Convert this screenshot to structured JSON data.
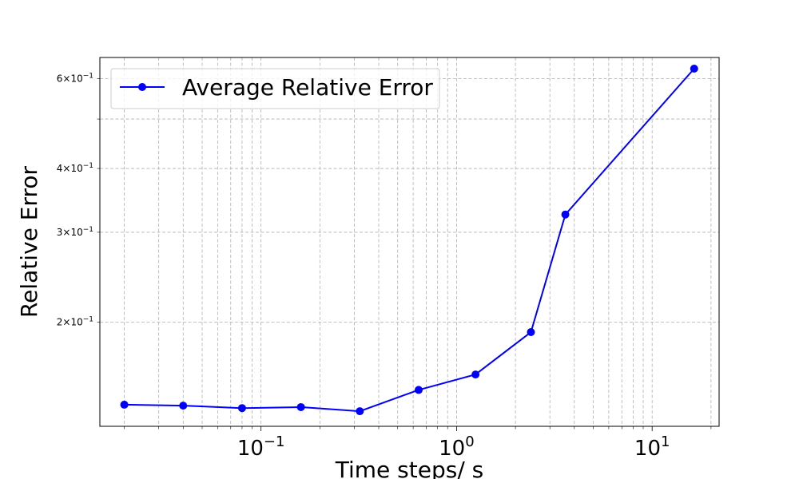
{
  "chart_data": {
    "type": "line",
    "xscale": "log",
    "yscale": "log",
    "xlabel": "Time steps/ s",
    "ylabel": "Relative Error",
    "xlim": [
      0.015,
      22
    ],
    "ylim": [
      0.125,
      0.66
    ],
    "grid": "both (major and minor), dashed",
    "legend_position": "upper-left",
    "series": [
      {
        "name": "Average Relative Error",
        "color": "#0000ff",
        "marker": "circle",
        "x": [
          0.02,
          0.04,
          0.08,
          0.16,
          0.32,
          0.64,
          1.25,
          2.4,
          3.6,
          16.4
        ],
        "y": [
          0.1378,
          0.1372,
          0.1357,
          0.1363,
          0.1338,
          0.1473,
          0.1579,
          0.1912,
          0.325,
          0.6275
        ]
      }
    ],
    "x_ticks": [
      {
        "value": 0.1,
        "base": "10",
        "exp": "−1"
      },
      {
        "value": 1,
        "base": "10",
        "exp": "0"
      },
      {
        "value": 10,
        "base": "10",
        "exp": "1"
      }
    ],
    "y_ticks": [
      {
        "value": 0.2,
        "mant": "2",
        "base": "×10",
        "exp": "−1"
      },
      {
        "value": 0.3,
        "mant": "3",
        "base": "×10",
        "exp": "−1"
      },
      {
        "value": 0.4,
        "mant": "4",
        "base": "×10",
        "exp": "−1"
      },
      {
        "value": 0.6,
        "mant": "6",
        "base": "×10",
        "exp": "−1"
      }
    ],
    "y_grid_values": [
      0.2,
      0.3,
      0.4,
      0.5,
      0.6
    ]
  }
}
